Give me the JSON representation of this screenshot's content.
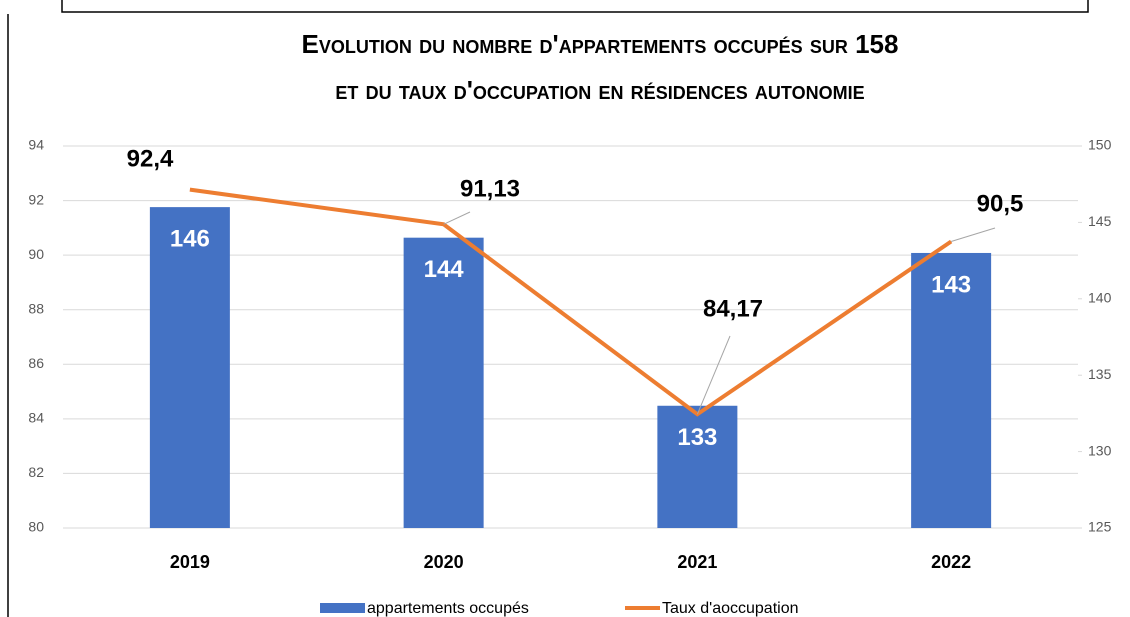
{
  "chart_data": {
    "type": "bar_line",
    "title": "Evolution du nombre d'appartements occupés sur 158",
    "subtitle": "et du taux d'occupation en résidences autonomie",
    "categories": [
      "2019",
      "2020",
      "2021",
      "2022"
    ],
    "series": [
      {
        "name": "appartements occupés",
        "type": "bar",
        "color": "#4472c4",
        "axis": "y2",
        "values": [
          146,
          144,
          133,
          143
        ]
      },
      {
        "name": "Taux d'aoccupation",
        "type": "line",
        "color": "#ed7d31",
        "axis": "y",
        "values": [
          92.4,
          91.13,
          84.17,
          90.5
        ],
        "value_labels": [
          "92,4",
          "91,13",
          "84,17",
          "90,5"
        ]
      }
    ],
    "ylim": [
      80,
      94
    ],
    "yticks": [
      80,
      82,
      84,
      86,
      88,
      90,
      92,
      94
    ],
    "y2lim": [
      125,
      150
    ],
    "y2ticks": [
      125,
      130,
      135,
      140,
      145,
      150
    ],
    "grid": true,
    "legend": "bottom"
  }
}
